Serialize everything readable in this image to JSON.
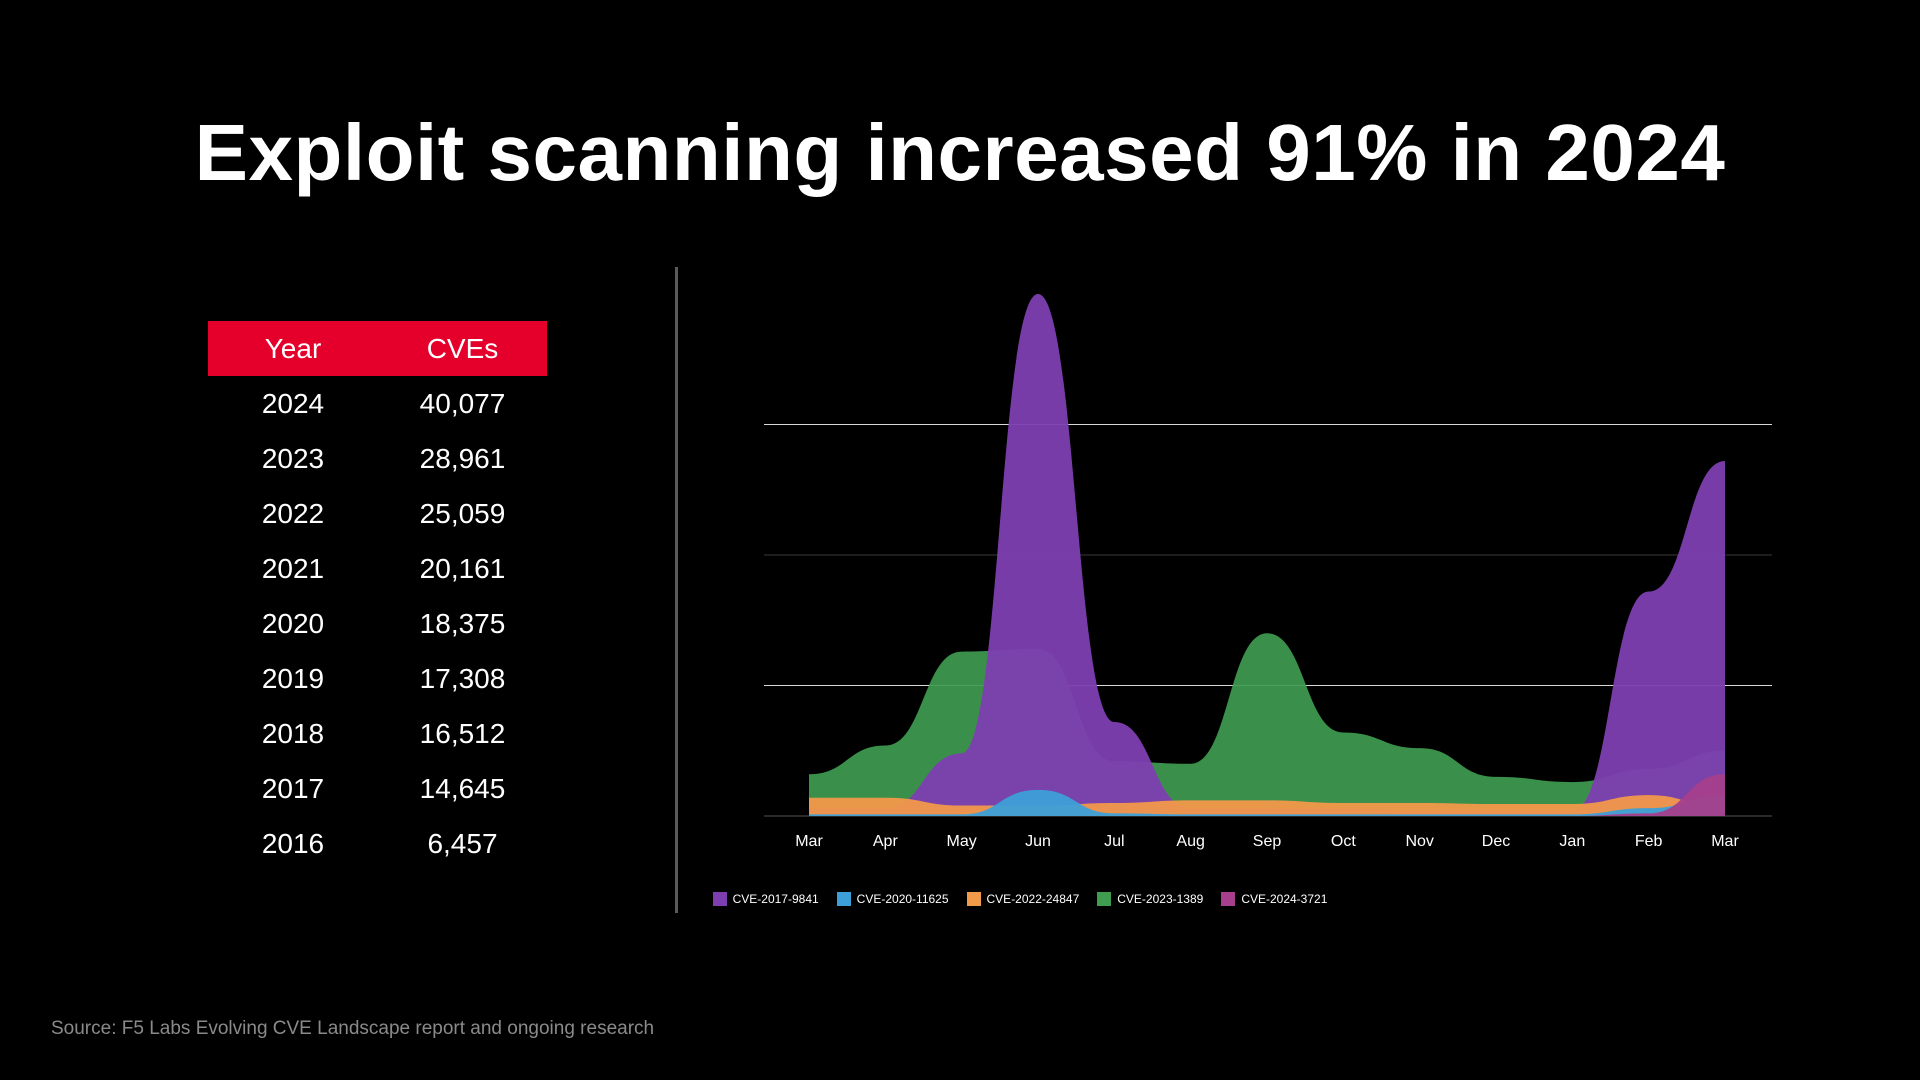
{
  "title": "Exploit scanning increased 91% in 2024",
  "table": {
    "headers": [
      "Year",
      "CVEs"
    ],
    "rows": [
      [
        "2024",
        "40,077"
      ],
      [
        "2023",
        "28,961"
      ],
      [
        "2022",
        "25,059"
      ],
      [
        "2021",
        "20,161"
      ],
      [
        "2020",
        "18,375"
      ],
      [
        "2019",
        "17,308"
      ],
      [
        "2018",
        "16,512"
      ],
      [
        "2017",
        "14,645"
      ],
      [
        "2016",
        "6,457"
      ]
    ],
    "header_color": "#e4002b"
  },
  "chart_data": {
    "type": "area",
    "categories": [
      "Mar",
      "Apr",
      "May",
      "Jun",
      "Jul",
      "Aug",
      "Sep",
      "Oct",
      "Nov",
      "Dec",
      "Jan",
      "Feb",
      "Mar"
    ],
    "ylim": [
      0,
      100
    ],
    "grid": true,
    "legend_position": "bottom-center",
    "series": [
      {
        "name": "CVE-2017-9841",
        "color": "#7d3fb0",
        "values": [
          1.5,
          1.5,
          12,
          100,
          18,
          1.5,
          1.5,
          1.5,
          1,
          1,
          1,
          43,
          68
        ]
      },
      {
        "name": "CVE-2020-11625",
        "color": "#3c9fd8",
        "values": [
          0.3,
          0.3,
          0.3,
          5,
          0.5,
          0.3,
          0.3,
          0.3,
          0.3,
          0.3,
          0.3,
          1.5,
          4
        ]
      },
      {
        "name": "CVE-2022-24847",
        "color": "#f2994a",
        "values": [
          3.5,
          3.5,
          2,
          2,
          2.5,
          3,
          3,
          2.5,
          2.5,
          2.3,
          2.3,
          4,
          1.5
        ]
      },
      {
        "name": "CVE-2023-1389",
        "color": "#3f9c50",
        "values": [
          8,
          13.5,
          31.5,
          32,
          10.5,
          10,
          35,
          16,
          13,
          7.5,
          6.5,
          9,
          12.5
        ]
      },
      {
        "name": "CVE-2024-3721",
        "color": "#a63f8c",
        "values": [
          0,
          0,
          0,
          0,
          0,
          0,
          0,
          0,
          0,
          0,
          0,
          0.5,
          8
        ]
      }
    ]
  },
  "source": "Source: F5 Labs Evolving CVE Landscape report and ongoing research"
}
